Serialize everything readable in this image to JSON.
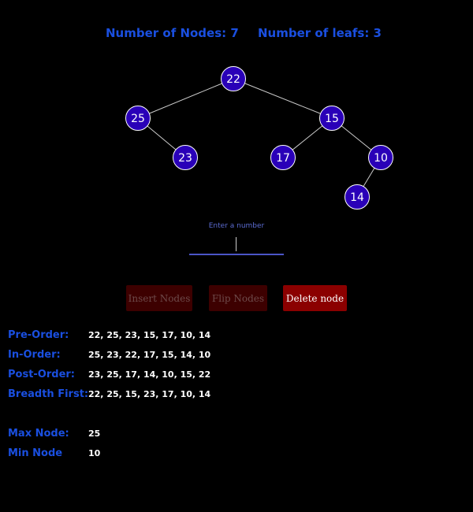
{
  "stats": {
    "nodes_label": "Number of Nodes: 7",
    "leafs_label": "Number of leafs: 3"
  },
  "tree": {
    "nodes": [
      "22",
      "25",
      "15",
      "23",
      "17",
      "10",
      "14"
    ],
    "node_fill": "#2a00b8",
    "node_stroke": "#ffffff",
    "edge_color": "#cccccc"
  },
  "input": {
    "label": "Enter a number",
    "value": ""
  },
  "buttons": {
    "insert": "Insert Nodes",
    "flip": "Flip Nodes",
    "delete": "Delete node"
  },
  "traversals": [
    {
      "label": "Pre-Order:",
      "value": "22, 25, 23, 15, 17, 10, 14"
    },
    {
      "label": "In-Order:",
      "value": "25, 23, 22, 17, 15, 14, 10"
    },
    {
      "label": "Post-Order:",
      "value": "23, 25, 17, 14, 10, 15, 22"
    },
    {
      "label": "Breadth First:",
      "value": "22, 25, 15, 23, 17, 10, 14"
    }
  ],
  "extremes": [
    {
      "label": "Max Node:",
      "value": "25"
    },
    {
      "label": "Min Node",
      "value": "10"
    }
  ],
  "colors": {
    "accent": "#1a4fe0",
    "background": "#000000",
    "delete_button": "#8b0000",
    "disabled_button": "#3d0000"
  }
}
